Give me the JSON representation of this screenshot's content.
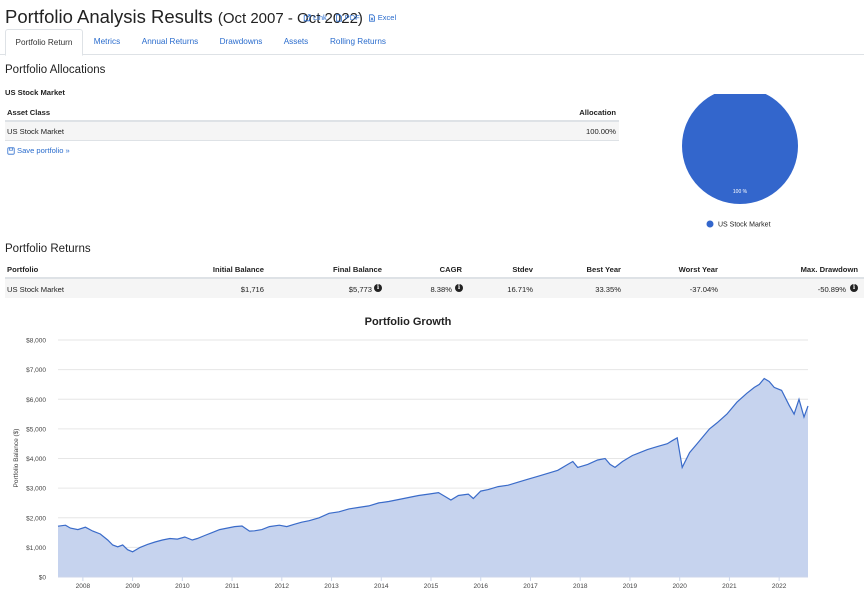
{
  "header": {
    "title": "Portfolio Analysis Results",
    "subtitle": "(Oct 2007 - Oct 2022)",
    "links": [
      {
        "label": "Link",
        "icon": "external-link-icon"
      },
      {
        "label": "PDF",
        "icon": "pdf-file-icon"
      },
      {
        "label": "Excel",
        "icon": "excel-file-icon"
      }
    ]
  },
  "tabs": [
    "Portfolio Return",
    "Metrics",
    "Annual Returns",
    "Drawdowns",
    "Assets",
    "Rolling Returns"
  ],
  "allocations": {
    "heading": "Portfolio Allocations",
    "portfolio_name": "US Stock Market",
    "col_asset": "Asset Class",
    "col_alloc": "Allocation",
    "row_asset": "US Stock Market",
    "row_alloc": "100.00%",
    "save_label": "Save portfolio »",
    "pie_label": "100 %",
    "legend": "US Stock Market",
    "color": "#3366cc"
  },
  "returns": {
    "heading": "Portfolio Returns",
    "headers": [
      "Portfolio",
      "Initial Balance",
      "Final Balance",
      "CAGR",
      "Stdev",
      "Best Year",
      "Worst Year",
      "Max. Drawdown"
    ],
    "row": [
      "US Stock Market",
      "$1,716",
      "$5,773",
      "8.38%",
      "16.71%",
      "33.35%",
      "-37.04%",
      "-50.89%"
    ]
  },
  "chart_data": {
    "type": "area",
    "title": "Portfolio Growth",
    "ylabel": "Portfolio Balance ($)",
    "xlabel": "",
    "ylim": [
      0,
      8000
    ],
    "yticks": [
      "$0",
      "$1,000",
      "$2,000",
      "$3,000",
      "$4,000",
      "$5,000",
      "$6,000",
      "$7,000",
      "$8,000"
    ],
    "xticks": [
      "2008",
      "2009",
      "2010",
      "2011",
      "2012",
      "2013",
      "2014",
      "2015",
      "2016",
      "2017",
      "2018",
      "2019",
      "2020",
      "2021",
      "2022"
    ],
    "xlim": [
      2007.75,
      2022.83
    ],
    "series": [
      {
        "name": "US Stock Market",
        "x": [
          2007.75,
          2007.9,
          2008.0,
          2008.15,
          2008.3,
          2008.45,
          2008.6,
          2008.75,
          2008.85,
          2008.95,
          2009.05,
          2009.15,
          2009.25,
          2009.4,
          2009.55,
          2009.7,
          2009.85,
          2010.0,
          2010.15,
          2010.3,
          2010.45,
          2010.55,
          2010.7,
          2010.85,
          2011.0,
          2011.15,
          2011.3,
          2011.45,
          2011.6,
          2011.7,
          2011.85,
          2012.0,
          2012.2,
          2012.35,
          2012.5,
          2012.65,
          2012.8,
          2013.0,
          2013.2,
          2013.4,
          2013.6,
          2013.8,
          2014.0,
          2014.2,
          2014.4,
          2014.55,
          2014.7,
          2014.85,
          2015.0,
          2015.2,
          2015.4,
          2015.55,
          2015.65,
          2015.8,
          2016.0,
          2016.1,
          2016.25,
          2016.4,
          2016.6,
          2016.8,
          2017.0,
          2017.2,
          2017.4,
          2017.6,
          2017.8,
          2018.0,
          2018.1,
          2018.2,
          2018.4,
          2018.6,
          2018.75,
          2018.85,
          2018.95,
          2019.1,
          2019.3,
          2019.45,
          2019.6,
          2019.8,
          2020.0,
          2020.1,
          2020.2,
          2020.3,
          2020.45,
          2020.6,
          2020.75,
          2020.85,
          2021.0,
          2021.2,
          2021.4,
          2021.6,
          2021.75,
          2021.85,
          2021.95,
          2022.05,
          2022.15,
          2022.3,
          2022.45,
          2022.55,
          2022.65,
          2022.75,
          2022.83
        ],
        "values": [
          1716,
          1750,
          1650,
          1600,
          1680,
          1550,
          1450,
          1250,
          1080,
          1020,
          1080,
          920,
          850,
          1000,
          1100,
          1180,
          1250,
          1300,
          1280,
          1350,
          1250,
          1300,
          1400,
          1500,
          1600,
          1650,
          1700,
          1720,
          1550,
          1560,
          1600,
          1700,
          1750,
          1700,
          1780,
          1850,
          1900,
          2000,
          2150,
          2200,
          2300,
          2350,
          2400,
          2500,
          2550,
          2600,
          2650,
          2700,
          2750,
          2800,
          2850,
          2700,
          2600,
          2750,
          2800,
          2650,
          2900,
          2950,
          3050,
          3100,
          3200,
          3300,
          3400,
          3500,
          3600,
          3800,
          3900,
          3700,
          3800,
          3950,
          4000,
          3800,
          3700,
          3900,
          4100,
          4200,
          4300,
          4400,
          4500,
          4600,
          4700,
          3700,
          4200,
          4500,
          4800,
          5000,
          5200,
          5500,
          5900,
          6200,
          6400,
          6500,
          6700,
          6600,
          6400,
          6300,
          5800,
          5500,
          6000,
          5400,
          5773
        ]
      }
    ]
  }
}
